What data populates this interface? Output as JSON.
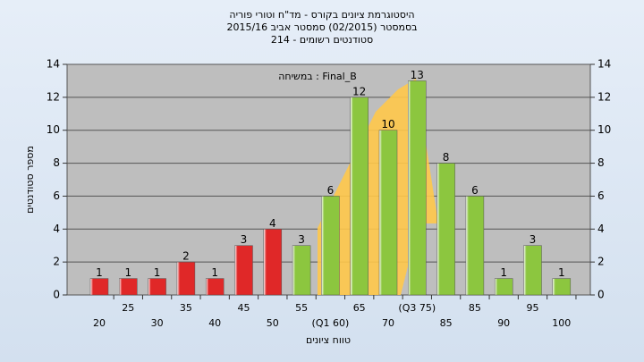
{
  "chart_data": {
    "type": "bar",
    "title": "היסטוגרמת ציונים בקורס - מד\"ח וטורי פוריה",
    "subtitle": "בסמסטר  (02/2015)  סמסטר אביב 2015/16",
    "subtitle2": "סטודנטים רשומים - 214",
    "annotation": "במשיחה : Final_B",
    "y_label": "מספר סטודנטים",
    "x_label": "טווח ציונים",
    "categories": [
      "20",
      "25",
      "30",
      "35",
      "40",
      "45",
      "50",
      "55",
      "(Q1 60)",
      "65",
      "70",
      "(Q3 75)",
      "85",
      "85",
      "90",
      "95",
      "100"
    ],
    "values": [
      1,
      1,
      1,
      2,
      1,
      3,
      4,
      3,
      6,
      12,
      10,
      13,
      8,
      6,
      1,
      3,
      1
    ],
    "colors": [
      "#e02828",
      "#e02828",
      "#e02828",
      "#e02828",
      "#e02828",
      "#e02828",
      "#e02828",
      "#8cc63f",
      "#8cc63f",
      "#8cc63f",
      "#8cc63f",
      "#8cc63f",
      "#8cc63f",
      "#8cc63f",
      "#8cc63f",
      "#8cc63f",
      "#8cc63f"
    ],
    "ylim": [
      0,
      14
    ],
    "yticks": [
      0,
      2,
      4,
      6,
      8,
      10,
      12,
      14
    ],
    "y2lim": [
      0,
      14
    ],
    "y2ticks": [
      0,
      2,
      4,
      6,
      8,
      10,
      12,
      14
    ],
    "grid": true
  }
}
